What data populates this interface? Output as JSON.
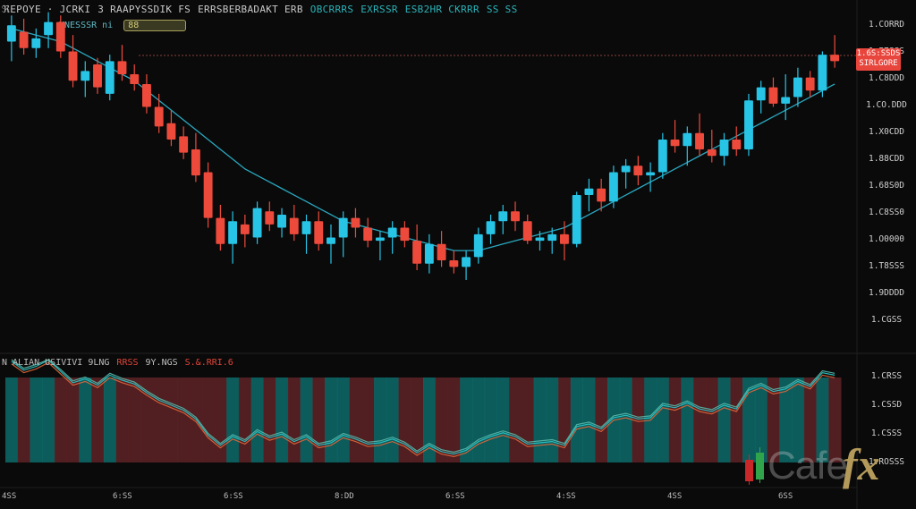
{
  "header": {
    "legend_items": [
      {
        "text": "ℜEPOYE · JCRKI",
        "color": "gray"
      },
      {
        "text": "3 RAAPYSSDIK FS",
        "color": "gray"
      },
      {
        "text": "ERRSBERBADAKT ERB",
        "color": "gray"
      },
      {
        "text": "OBCRRRS",
        "color": "teal"
      },
      {
        "text": "EXRSSR",
        "color": "teal"
      },
      {
        "text": "ESB2HR CKRRR",
        "color": "teal"
      },
      {
        "text": "SS SS",
        "color": "teal"
      }
    ],
    "sub_legend": "MNESSSR  ni",
    "badge": "88"
  },
  "price_axis": {
    "labels": [
      "1.CORRD",
      "1.P7SSS",
      "1.C8DDD",
      "1.CO.DDD",
      "1.X0CDD",
      "1.88CDD",
      "1.68S0D",
      "1.C8SS0",
      "1.O0000",
      "1.T8SSS",
      "1.9DDDD",
      "1.CGSS"
    ],
    "current_price_tag": [
      "1.6S:SSDS",
      "SIRLGORE"
    ]
  },
  "indicator": {
    "legend": [
      {
        "text": "N ALIAN USIVIVI 9LNG",
        "color": "gray"
      },
      {
        "text": "RRSS",
        "color": "red"
      },
      {
        "text": "9Y.NGS",
        "color": "gray"
      },
      {
        "text": "S.&.RRI.6",
        "color": "red"
      }
    ],
    "axis_labels": [
      "1.CRSS",
      "1.CSSD",
      "1.CSSS",
      "1.ROSSS"
    ]
  },
  "time_axis": [
    "4SS",
    "6:SS",
    "6:SS",
    "8:DD",
    "6:SS",
    "4:SS",
    "4SS",
    "6SS"
  ],
  "logo": {
    "word": "Cafe",
    "suffix": "fx"
  },
  "colors": {
    "bull": "#27c4e6",
    "bear": "#ee4a3c",
    "ma": "#2aa8c0",
    "ind_teal": "#0d6b6b",
    "ind_red": "#5e2226"
  },
  "chart_data": {
    "type": "candlestick",
    "title": "",
    "ylim": [
      0,
      100
    ],
    "grid": false,
    "ohlc": [
      {
        "o": 90,
        "h": 98,
        "l": 84,
        "c": 95
      },
      {
        "o": 93,
        "h": 97,
        "l": 86,
        "c": 88
      },
      {
        "o": 88,
        "h": 94,
        "l": 85,
        "c": 91
      },
      {
        "o": 92,
        "h": 99,
        "l": 88,
        "c": 96
      },
      {
        "o": 96,
        "h": 98,
        "l": 85,
        "c": 87
      },
      {
        "o": 87,
        "h": 92,
        "l": 76,
        "c": 78
      },
      {
        "o": 78,
        "h": 84,
        "l": 73,
        "c": 81
      },
      {
        "o": 83,
        "h": 85,
        "l": 74,
        "c": 76
      },
      {
        "o": 74,
        "h": 86,
        "l": 72,
        "c": 84
      },
      {
        "o": 84,
        "h": 89,
        "l": 78,
        "c": 80
      },
      {
        "o": 80,
        "h": 83,
        "l": 75,
        "c": 77
      },
      {
        "o": 77,
        "h": 80,
        "l": 68,
        "c": 70
      },
      {
        "o": 70,
        "h": 74,
        "l": 62,
        "c": 64
      },
      {
        "o": 65,
        "h": 69,
        "l": 58,
        "c": 60
      },
      {
        "o": 61,
        "h": 64,
        "l": 54,
        "c": 56
      },
      {
        "o": 57,
        "h": 62,
        "l": 47,
        "c": 49
      },
      {
        "o": 50,
        "h": 53,
        "l": 33,
        "c": 36
      },
      {
        "o": 36,
        "h": 40,
        "l": 26,
        "c": 28
      },
      {
        "o": 28,
        "h": 38,
        "l": 22,
        "c": 35
      },
      {
        "o": 34,
        "h": 37,
        "l": 27,
        "c": 31
      },
      {
        "o": 30,
        "h": 41,
        "l": 28,
        "c": 39
      },
      {
        "o": 38,
        "h": 41,
        "l": 32,
        "c": 34
      },
      {
        "o": 33,
        "h": 39,
        "l": 30,
        "c": 37
      },
      {
        "o": 36,
        "h": 40,
        "l": 29,
        "c": 31
      },
      {
        "o": 31,
        "h": 37,
        "l": 25,
        "c": 35
      },
      {
        "o": 35,
        "h": 38,
        "l": 26,
        "c": 28
      },
      {
        "o": 28,
        "h": 34,
        "l": 22,
        "c": 30
      },
      {
        "o": 30,
        "h": 38,
        "l": 24,
        "c": 36
      },
      {
        "o": 36,
        "h": 39,
        "l": 30,
        "c": 33
      },
      {
        "o": 33,
        "h": 36,
        "l": 27,
        "c": 29
      },
      {
        "o": 29,
        "h": 32,
        "l": 23,
        "c": 30
      },
      {
        "o": 30,
        "h": 35,
        "l": 25,
        "c": 33
      },
      {
        "o": 33,
        "h": 35,
        "l": 27,
        "c": 29
      },
      {
        "o": 29,
        "h": 34,
        "l": 20,
        "c": 22
      },
      {
        "o": 22,
        "h": 31,
        "l": 19,
        "c": 28
      },
      {
        "o": 28,
        "h": 32,
        "l": 21,
        "c": 23
      },
      {
        "o": 23,
        "h": 26,
        "l": 19,
        "c": 21
      },
      {
        "o": 21,
        "h": 26,
        "l": 17,
        "c": 24
      },
      {
        "o": 24,
        "h": 33,
        "l": 22,
        "c": 31
      },
      {
        "o": 31,
        "h": 37,
        "l": 28,
        "c": 35
      },
      {
        "o": 35,
        "h": 40,
        "l": 31,
        "c": 38
      },
      {
        "o": 38,
        "h": 41,
        "l": 32,
        "c": 35
      },
      {
        "o": 35,
        "h": 37,
        "l": 28,
        "c": 29
      },
      {
        "o": 29,
        "h": 32,
        "l": 26,
        "c": 30
      },
      {
        "o": 29,
        "h": 33,
        "l": 25,
        "c": 31
      },
      {
        "o": 31,
        "h": 35,
        "l": 23,
        "c": 28
      },
      {
        "o": 28,
        "h": 44,
        "l": 27,
        "c": 43
      },
      {
        "o": 43,
        "h": 48,
        "l": 38,
        "c": 45
      },
      {
        "o": 45,
        "h": 48,
        "l": 38,
        "c": 41
      },
      {
        "o": 41,
        "h": 52,
        "l": 39,
        "c": 50
      },
      {
        "o": 50,
        "h": 54,
        "l": 45,
        "c": 52
      },
      {
        "o": 52,
        "h": 55,
        "l": 46,
        "c": 49
      },
      {
        "o": 49,
        "h": 53,
        "l": 44,
        "c": 50
      },
      {
        "o": 50,
        "h": 62,
        "l": 48,
        "c": 60
      },
      {
        "o": 60,
        "h": 66,
        "l": 56,
        "c": 58
      },
      {
        "o": 58,
        "h": 64,
        "l": 52,
        "c": 62
      },
      {
        "o": 62,
        "h": 68,
        "l": 55,
        "c": 57
      },
      {
        "o": 57,
        "h": 63,
        "l": 53,
        "c": 55
      },
      {
        "o": 55,
        "h": 62,
        "l": 52,
        "c": 60
      },
      {
        "o": 60,
        "h": 64,
        "l": 55,
        "c": 57
      },
      {
        "o": 57,
        "h": 74,
        "l": 55,
        "c": 72
      },
      {
        "o": 72,
        "h": 78,
        "l": 68,
        "c": 76
      },
      {
        "o": 76,
        "h": 79,
        "l": 70,
        "c": 71
      },
      {
        "o": 71,
        "h": 80,
        "l": 66,
        "c": 73
      },
      {
        "o": 73,
        "h": 82,
        "l": 70,
        "c": 79
      },
      {
        "o": 79,
        "h": 81,
        "l": 73,
        "c": 75
      },
      {
        "o": 75,
        "h": 87,
        "l": 73,
        "c": 86
      },
      {
        "o": 86,
        "h": 92,
        "l": 82,
        "c": 84
      }
    ],
    "moving_average": [
      94,
      93,
      92,
      91,
      90,
      88,
      86,
      84,
      82,
      80,
      78,
      75,
      72,
      69,
      66,
      63,
      60,
      57,
      54,
      51,
      49,
      47,
      45,
      43,
      41,
      39,
      37,
      35,
      34,
      33,
      32,
      31,
      30,
      29,
      28,
      27,
      26,
      26,
      26,
      27,
      28,
      29,
      30,
      31,
      32,
      33,
      35,
      37,
      39,
      41,
      43,
      45,
      47,
      49,
      51,
      53,
      55,
      57,
      59,
      61,
      63,
      65,
      67,
      69,
      71,
      73,
      75,
      77
    ]
  }
}
